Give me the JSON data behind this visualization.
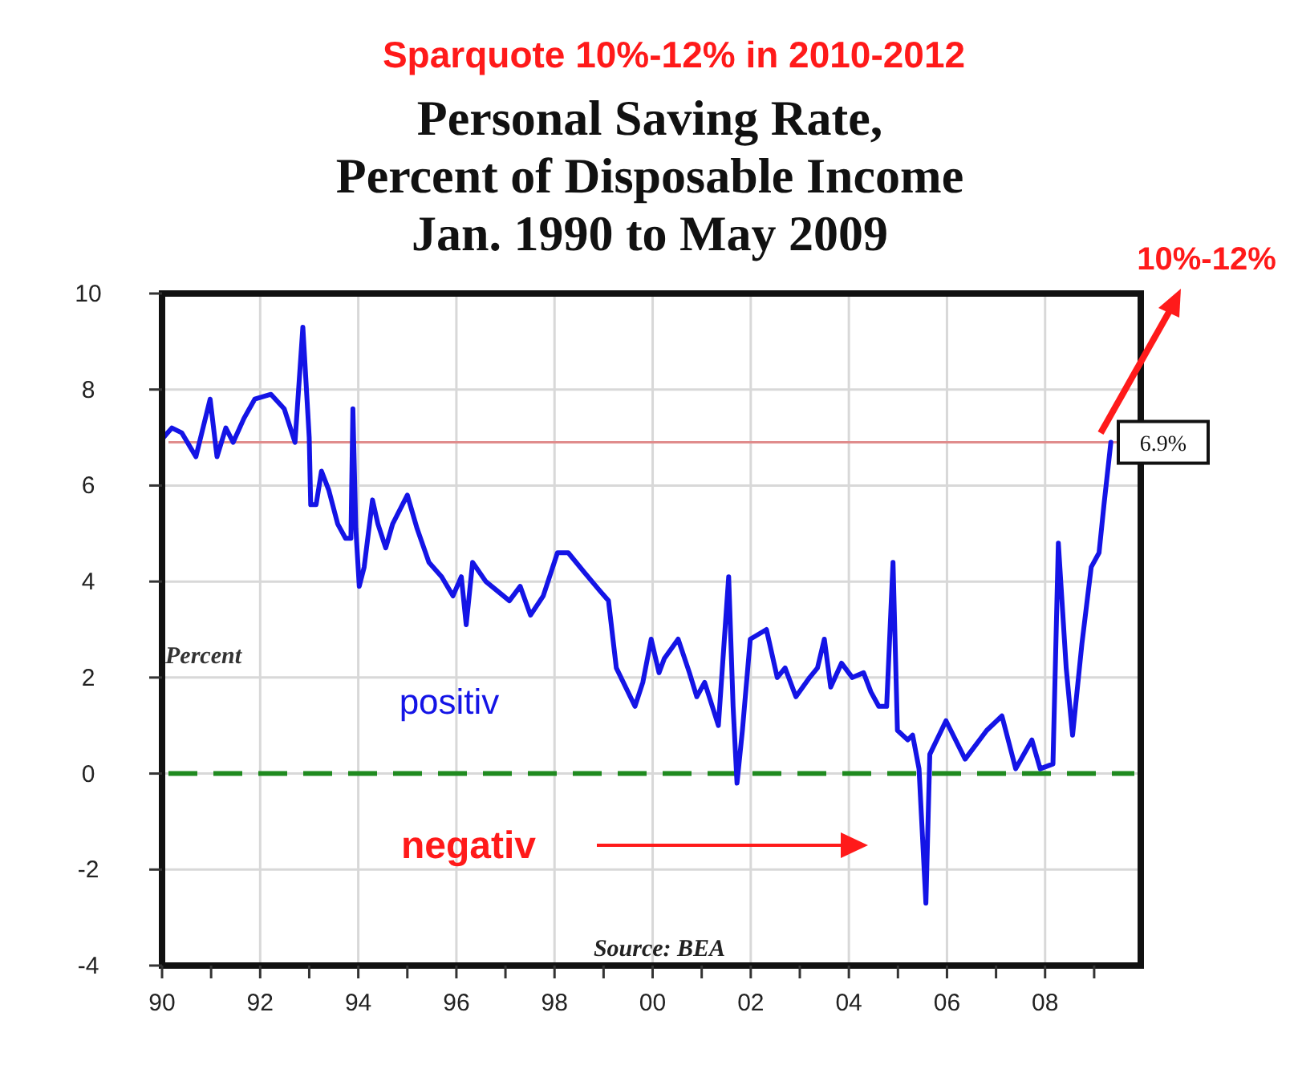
{
  "chart_data": {
    "type": "line",
    "title": "Personal Saving Rate,\nPercent of Disposable Income\nJan. 1990 to May 2009",
    "ylabel": "Percent",
    "annotations": [
      "Sparquote 10%-12% in 2010-2012",
      "10%-12%",
      "positiv",
      "negativ",
      "Source: BEA"
    ],
    "series": [
      {
        "color": "#1414e6",
        "x": [
          1990.03,
          1990.2,
          1990.4,
          1990.69,
          1990.98,
          1991.12,
          1991.3,
          1991.45,
          1991.67,
          1991.89,
          1992.22,
          1992.49,
          1992.71,
          1992.87,
          1993.0,
          1993.03,
          1993.14,
          1993.25,
          1993.4,
          1993.58,
          1993.74,
          1993.85,
          1993.89,
          1993.95,
          1994.02,
          1994.12,
          1994.29,
          1994.4,
          1994.56,
          1994.7,
          1995.0,
          1995.2,
          1995.44,
          1995.7,
          1995.93,
          1996.1,
          1996.2,
          1996.33,
          1996.6,
          1997.08,
          1997.3,
          1997.51,
          1997.77,
          1998.06,
          1998.28,
          1998.6,
          1998.93,
          1999.1,
          1999.26,
          1999.64,
          1999.8,
          1999.97,
          2000.13,
          2000.24,
          2000.52,
          2000.75,
          2000.9,
          2001.06,
          2001.34,
          2001.55,
          2001.64,
          2001.72,
          2001.83,
          2001.99,
          2002.32,
          2002.54,
          2002.7,
          2002.92,
          2003.2,
          2003.36,
          2003.5,
          2003.63,
          2003.85,
          2004.07,
          2004.3,
          2004.45,
          2004.61,
          2004.77,
          2004.9,
          2004.99,
          2005.2,
          2005.3,
          2005.43,
          2005.57,
          2005.65,
          2005.98,
          2006.37,
          2006.81,
          2007.12,
          2007.4,
          2007.73,
          2007.9,
          2008.16,
          2008.27,
          2008.43,
          2008.56,
          2008.75,
          2008.94,
          2009.1,
          2009.2,
          2009.34
        ],
        "values": [
          7.0,
          7.2,
          7.1,
          6.6,
          7.8,
          6.6,
          7.2,
          6.9,
          7.4,
          7.8,
          7.9,
          7.6,
          6.9,
          9.3,
          7.0,
          5.6,
          5.6,
          6.3,
          5.9,
          5.2,
          4.9,
          4.9,
          7.6,
          5.1,
          3.9,
          4.3,
          5.7,
          5.2,
          4.7,
          5.2,
          5.8,
          5.1,
          4.4,
          4.1,
          3.7,
          4.1,
          3.1,
          4.4,
          4.0,
          3.6,
          3.9,
          3.3,
          3.7,
          4.6,
          4.6,
          4.2,
          3.8,
          3.6,
          2.2,
          1.4,
          1.9,
          2.8,
          2.1,
          2.4,
          2.8,
          2.1,
          1.6,
          1.9,
          1.0,
          4.1,
          1.4,
          -0.2,
          0.9,
          2.8,
          3.0,
          2.0,
          2.2,
          1.6,
          2.0,
          2.2,
          2.8,
          1.8,
          2.3,
          2.0,
          2.1,
          1.7,
          1.4,
          1.4,
          4.4,
          0.9,
          0.7,
          0.8,
          0.1,
          -2.7,
          0.4,
          1.1,
          0.3,
          0.9,
          1.2,
          0.1,
          0.7,
          0.1,
          0.2,
          4.8,
          2.2,
          0.8,
          2.7,
          4.3,
          4.6,
          5.6,
          6.9
        ]
      }
    ],
    "xlim": [
      1990,
      2009.95
    ],
    "xticks": [
      {
        "value": 1990,
        "label": "90"
      },
      {
        "value": 1991,
        "label": null
      },
      {
        "value": 1992,
        "label": "92"
      },
      {
        "value": 1993,
        "label": null
      },
      {
        "value": 1994,
        "label": "94"
      },
      {
        "value": 1995,
        "label": null
      },
      {
        "value": 1996,
        "label": "96"
      },
      {
        "value": 1997,
        "label": null
      },
      {
        "value": 1998,
        "label": "98"
      },
      {
        "value": 1999,
        "label": null
      },
      {
        "value": 2000,
        "label": "00"
      },
      {
        "value": 2001,
        "label": null
      },
      {
        "value": 2002,
        "label": "02"
      },
      {
        "value": 2003,
        "label": null
      },
      {
        "value": 2004,
        "label": "04"
      },
      {
        "value": 2005,
        "label": null
      },
      {
        "value": 2006,
        "label": "06"
      },
      {
        "value": 2007,
        "label": null
      },
      {
        "value": 2008,
        "label": "08"
      },
      {
        "value": 2009,
        "label": null
      }
    ],
    "ylim": [
      -4,
      10
    ],
    "yticks": [
      -4,
      -2,
      0,
      2,
      4,
      6,
      8,
      10
    ],
    "grid": true,
    "line_style": "solid",
    "ref_lines": [
      {
        "axis": "y",
        "value": 6.9,
        "label": "6.9%",
        "color": "#e08c8c",
        "line_style": "solid"
      },
      {
        "axis": "y",
        "value": 0,
        "label": null,
        "color": "#1f8a1f",
        "line_style": "dashed"
      }
    ]
  }
}
